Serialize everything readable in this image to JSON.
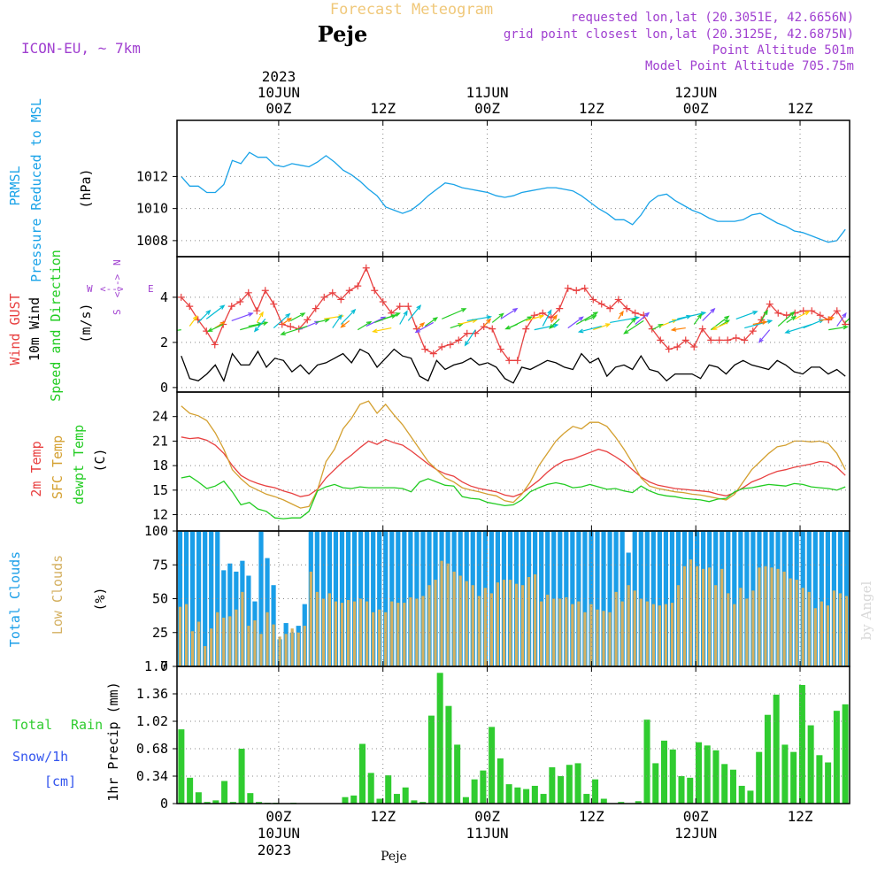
{
  "header": {
    "title": "Forecast Meteogram",
    "location": "Peje",
    "model": "ICON-EU, ~ 7km",
    "requested": "requested lon,lat (20.3051E, 42.6656N)",
    "gridpoint": "grid point closest lon,lat (20.3125E, 42.6875N)",
    "point_altitude": "Point Altitude 501m",
    "model_altitude": "Model Point Altitude 705.75m",
    "footer": "Peje",
    "credit": "by Angel"
  },
  "colors": {
    "pressure": "#1aa3e8",
    "wind_speed": "#000000",
    "gust": "#e84040",
    "temp2m": "#e84040",
    "sfc": "#d4a030",
    "dewpt": "#22cc22",
    "total_clouds": "#1a9ee8",
    "low_clouds": "#d4b060",
    "rain": "#30cc30",
    "snow": "#3355ee",
    "meta": "#a040d0"
  },
  "chart_data": [
    {
      "type": "line",
      "panel": "pressure",
      "ylabel": [
        "PRMSL",
        "Pressure Reduced to MSL",
        "(hPa)"
      ],
      "ylim": [
        1007,
        1015.5
      ],
      "yticks": [
        "1008",
        "1010",
        "1012"
      ],
      "ytick_values": [
        1008,
        1010,
        1012
      ],
      "series": [
        {
          "values": [
            1012.0,
            1011.4,
            1011.4,
            1011.0,
            1011.0,
            1011.5,
            1013.0,
            1012.8,
            1013.5,
            1013.2,
            1013.2,
            1012.7,
            1012.6,
            1012.8,
            1012.7,
            1012.6,
            1012.9,
            1013.3,
            1012.9,
            1012.4,
            1012.1,
            1011.7,
            1011.2,
            1010.8,
            1010.1,
            1009.9,
            1009.7,
            1009.9,
            1010.3,
            1010.8,
            1011.2,
            1011.6,
            1011.5,
            1011.3,
            1011.2,
            1011.1,
            1011.0,
            1010.8,
            1010.7,
            1010.8,
            1011.0,
            1011.1,
            1011.2,
            1011.3,
            1011.3,
            1011.2,
            1011.1,
            1010.8,
            1010.4,
            1010.0,
            1009.7,
            1009.3,
            1009.3,
            1009.0,
            1009.6,
            1010.4,
            1010.8,
            1010.9,
            1010.5,
            1010.2,
            1009.9,
            1009.7,
            1009.4,
            1009.2,
            1009.2,
            1009.2,
            1009.3,
            1009.6,
            1009.7,
            1009.4,
            1009.1,
            1008.9,
            1008.6,
            1008.5,
            1008.3,
            1008.1,
            1007.9,
            1008.0,
            1008.7
          ]
        }
      ]
    },
    {
      "type": "line",
      "panel": "wind",
      "ylabel": [
        "Wind GUST",
        "10m Wind",
        "Speed and Direction",
        "(m/s)"
      ],
      "compass": {
        "w": "W",
        "e": "E",
        "n": "N",
        "s": "S"
      },
      "ylim": [
        -0.2,
        5.8
      ],
      "yticks": [
        "0",
        "2",
        "4"
      ],
      "ytick_values": [
        0,
        2,
        4
      ],
      "series": [
        {
          "key": "gust",
          "values": [
            4.0,
            3.6,
            3.0,
            2.5,
            1.9,
            2.8,
            3.6,
            3.8,
            4.2,
            3.4,
            4.3,
            3.7,
            2.8,
            2.7,
            2.6,
            3.0,
            3.5,
            4.0,
            4.2,
            3.9,
            4.3,
            4.5,
            5.3,
            4.3,
            3.8,
            3.3,
            3.6,
            3.6,
            2.6,
            1.7,
            1.5,
            1.8,
            1.9,
            2.1,
            2.4,
            2.4,
            2.7,
            2.6,
            1.7,
            1.2,
            1.2,
            2.6,
            3.2,
            3.3,
            3.1,
            3.5,
            4.4,
            4.3,
            4.4,
            3.9,
            3.7,
            3.5,
            3.9,
            3.5,
            3.3,
            3.2,
            2.6,
            2.1,
            1.7,
            1.8,
            2.1,
            1.8,
            2.6,
            2.1,
            2.1,
            2.1,
            2.2,
            2.1,
            2.5,
            3.0,
            3.7,
            3.3,
            3.2,
            3.3,
            3.4,
            3.4,
            3.2,
            3.0,
            3.4,
            2.8
          ]
        },
        {
          "key": "speed",
          "values": [
            1.4,
            0.4,
            0.3,
            0.6,
            1.0,
            0.3,
            1.5,
            1.0,
            1.0,
            1.6,
            0.9,
            1.3,
            1.2,
            0.7,
            1.0,
            0.6,
            1.0,
            1.1,
            1.3,
            1.5,
            1.1,
            1.7,
            1.5,
            0.9,
            1.3,
            1.7,
            1.4,
            1.3,
            0.5,
            0.3,
            1.2,
            0.8,
            1.0,
            1.1,
            1.3,
            1.0,
            1.1,
            0.9,
            0.4,
            0.2,
            0.9,
            0.8,
            1.0,
            1.2,
            1.1,
            0.9,
            0.8,
            1.5,
            1.1,
            1.3,
            0.5,
            0.9,
            1.0,
            0.8,
            1.4,
            0.8,
            0.7,
            0.3,
            0.6,
            0.6,
            0.6,
            0.4,
            1.0,
            0.9,
            0.6,
            1.0,
            1.2,
            1.0,
            0.9,
            0.8,
            1.2,
            1.0,
            0.7,
            0.6,
            0.9,
            0.9,
            0.6,
            0.8,
            0.5
          ]
        }
      ]
    },
    {
      "type": "line",
      "panel": "temperature",
      "ylabel": [
        "2m Temp",
        "SFC Temp",
        "dewpt Temp",
        "(C)"
      ],
      "ylim": [
        10,
        27
      ],
      "yticks": [
        "12",
        "15",
        "18",
        "21",
        "24"
      ],
      "ytick_values": [
        12,
        15,
        18,
        21,
        24
      ],
      "series": [
        {
          "key": "temp2m",
          "values": [
            21.5,
            21.3,
            21.4,
            21.1,
            20.5,
            19.5,
            18.0,
            16.8,
            16.2,
            15.8,
            15.5,
            15.3,
            14.9,
            14.6,
            14.2,
            14.4,
            15.1,
            16.5,
            17.5,
            18.5,
            19.3,
            20.2,
            21.0,
            20.6,
            21.2,
            20.8,
            20.5,
            19.8,
            19.0,
            18.2,
            17.5,
            17.0,
            16.7,
            16.0,
            15.5,
            15.2,
            15.0,
            14.8,
            14.4,
            14.2,
            14.6,
            15.4,
            16.2,
            17.2,
            18.0,
            18.6,
            18.8,
            19.2,
            19.6,
            20.0,
            19.7,
            19.1,
            18.4,
            17.5,
            16.6,
            16.0,
            15.6,
            15.4,
            15.2,
            15.1,
            15.0,
            14.9,
            14.8,
            14.5,
            14.3,
            14.7,
            15.3,
            16.0,
            16.4,
            16.9,
            17.3,
            17.5,
            17.8,
            18.0,
            18.2,
            18.5,
            18.4,
            17.8,
            16.8
          ]
        },
        {
          "key": "sfc",
          "values": [
            25.3,
            24.4,
            24.1,
            23.5,
            22.0,
            20.0,
            17.5,
            16.4,
            15.5,
            15.0,
            14.5,
            14.2,
            13.8,
            13.3,
            12.8,
            13.0,
            15.0,
            18.5,
            20.0,
            22.5,
            23.8,
            25.5,
            25.9,
            24.4,
            25.5,
            24.2,
            23.0,
            21.5,
            20.0,
            18.5,
            17.5,
            16.5,
            16.0,
            15.3,
            15.0,
            14.8,
            14.5,
            14.3,
            13.7,
            13.5,
            14.5,
            16.0,
            18.0,
            19.5,
            21.0,
            22.0,
            22.8,
            22.5,
            23.3,
            23.3,
            22.8,
            21.5,
            20.0,
            18.3,
            16.5,
            15.5,
            15.2,
            15.0,
            14.8,
            14.7,
            14.5,
            14.4,
            14.2,
            14.0,
            13.8,
            14.5,
            16.0,
            17.5,
            18.5,
            19.5,
            20.3,
            20.5,
            21.0,
            21.0,
            20.9,
            21.0,
            20.7,
            19.5,
            17.5
          ]
        },
        {
          "key": "dewpt",
          "values": [
            16.5,
            16.7,
            16.0,
            15.2,
            15.5,
            16.1,
            14.8,
            13.2,
            13.5,
            12.7,
            12.4,
            11.6,
            11.5,
            11.6,
            11.6,
            12.4,
            14.9,
            15.4,
            15.7,
            15.3,
            15.2,
            15.4,
            15.3,
            15.3,
            15.3,
            15.3,
            15.2,
            14.8,
            16.0,
            16.4,
            16.0,
            15.6,
            15.5,
            14.2,
            14.0,
            13.9,
            13.5,
            13.3,
            13.1,
            13.2,
            13.8,
            14.8,
            15.3,
            15.7,
            15.9,
            15.7,
            15.3,
            15.4,
            15.7,
            15.4,
            15.1,
            15.2,
            14.9,
            14.7,
            15.5,
            14.9,
            14.5,
            14.3,
            14.2,
            14.0,
            13.9,
            13.8,
            13.6,
            13.9,
            14.0,
            14.8,
            15.2,
            15.3,
            15.5,
            15.7,
            15.6,
            15.5,
            15.8,
            15.7,
            15.4,
            15.3,
            15.2,
            15.0,
            15.4
          ]
        }
      ]
    },
    {
      "type": "bar",
      "panel": "clouds",
      "ylabel": [
        "Total Clouds",
        "Low Clouds",
        "(%)"
      ],
      "ylim": [
        0,
        100
      ],
      "yticks": [
        "0",
        "25",
        "50",
        "75",
        "100"
      ],
      "ytick_values": [
        0,
        25,
        50,
        75,
        100
      ],
      "series": [
        {
          "key": "total",
          "values": [
            100,
            100,
            100,
            100,
            100,
            100,
            100,
            71,
            76,
            70,
            78,
            67,
            48,
            100,
            80,
            60,
            20,
            32,
            25,
            30,
            46,
            100,
            100,
            100,
            100,
            100,
            100,
            100,
            100,
            100,
            100,
            100,
            100,
            100,
            100,
            100,
            100,
            100,
            100,
            100,
            100,
            100,
            100,
            100,
            100,
            100,
            100,
            100,
            100,
            100,
            100,
            100,
            100,
            100,
            100,
            100,
            100,
            100,
            100,
            100,
            100,
            100,
            100,
            100,
            100,
            100,
            100,
            100,
            100,
            100,
            100,
            100,
            84,
            100,
            100,
            100,
            100,
            100,
            100,
            100,
            100,
            100,
            100,
            100,
            100,
            100,
            100,
            100,
            100,
            100,
            100,
            100,
            100,
            100,
            100,
            100,
            100,
            100,
            100,
            100,
            100,
            100,
            100,
            100,
            100,
            100,
            100,
            100
          ]
        },
        {
          "key": "low",
          "values": [
            44,
            46,
            26,
            33,
            15,
            28,
            40,
            36,
            37,
            42,
            55,
            30,
            34,
            24,
            40,
            31,
            22,
            24,
            28,
            25,
            30,
            70,
            55,
            50,
            54,
            48,
            47,
            49,
            48,
            50,
            48,
            40,
            42,
            40,
            48,
            47,
            47,
            51,
            50,
            52,
            60,
            64,
            78,
            76,
            70,
            67,
            63,
            60,
            52,
            58,
            54,
            62,
            64,
            64,
            61,
            60,
            66,
            68,
            48,
            53,
            50,
            50,
            51,
            46,
            48,
            40,
            46,
            42,
            41,
            40,
            55,
            48,
            60,
            56,
            50,
            48,
            46,
            45,
            46,
            47,
            60,
            74,
            79,
            74,
            72,
            73,
            60,
            72,
            54,
            46,
            58,
            50,
            56,
            73,
            74,
            73,
            72,
            70,
            65,
            64,
            58,
            55,
            43,
            48,
            45,
            56,
            54,
            52
          ]
        }
      ]
    },
    {
      "type": "bar",
      "panel": "precipitation",
      "ylabel": [
        "1hr Precip (mm)"
      ],
      "legend": {
        "total": "Total",
        "rain": "Rain",
        "snow": "Snow/1h",
        "unit": "[cm]"
      },
      "ylim": [
        0,
        1.7
      ],
      "yticks": [
        "0",
        "0.34",
        "0.68",
        "1.02",
        "1.36",
        "1.7"
      ],
      "ytick_values": [
        0,
        0.34,
        0.68,
        1.02,
        1.36,
        1.7
      ],
      "series": [
        {
          "key": "rain",
          "values": [
            0.92,
            0.32,
            0.14,
            0.02,
            0.04,
            0.28,
            0.02,
            0.68,
            0.13,
            0.02,
            0.01,
            0.01,
            0.0,
            0.01,
            0.0,
            0.0,
            0.0,
            0.0,
            0.0,
            0.08,
            0.1,
            0.74,
            0.38,
            0.06,
            0.35,
            0.12,
            0.2,
            0.04,
            0.02,
            1.09,
            1.62,
            1.21,
            0.73,
            0.08,
            0.3,
            0.41,
            0.95,
            0.56,
            0.24,
            0.2,
            0.18,
            0.22,
            0.12,
            0.45,
            0.34,
            0.48,
            0.5,
            0.12,
            0.3,
            0.06,
            0.0,
            0.02,
            0.0,
            0.03,
            1.04,
            0.5,
            0.78,
            0.67,
            0.34,
            0.32,
            0.76,
            0.72,
            0.66,
            0.49,
            0.42,
            0.22,
            0.16,
            0.64,
            1.1,
            1.35,
            0.73,
            0.64,
            1.47,
            0.97,
            0.6,
            0.51,
            1.15,
            1.23
          ]
        }
      ]
    }
  ],
  "time_axis": {
    "top_year": "2023",
    "bottom_year": "2023",
    "ticks": [
      {
        "hours": 0,
        "label": "00Z",
        "date": "10JUN"
      },
      {
        "hours": 12,
        "label": "12Z",
        "date": ""
      },
      {
        "hours": 24,
        "label": "00Z",
        "date": "11JUN"
      },
      {
        "hours": 36,
        "label": "12Z",
        "date": ""
      },
      {
        "hours": 48,
        "label": "00Z",
        "date": "12JUN"
      },
      {
        "hours": 60,
        "label": "12Z",
        "date": ""
      }
    ]
  }
}
